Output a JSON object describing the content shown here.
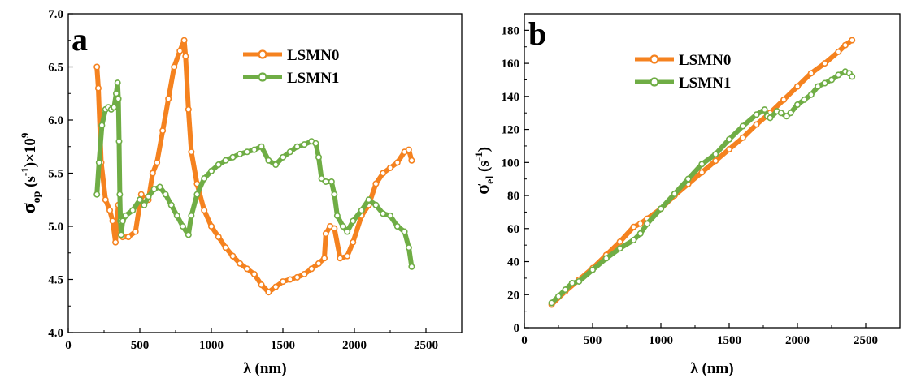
{
  "chart_data": [
    {
      "type": "line",
      "panel_label": "a",
      "ylabel_main": "σ",
      "ylabel_sub": "op",
      "ylabel_rest": " (s",
      "ylabel_exp": "-1",
      "ylabel_rest2": ")×10",
      "ylabel_exp2": "9",
      "xlabel": "λ (nm)",
      "xlim": [
        0,
        2750
      ],
      "ylim": [
        4.0,
        7.0
      ],
      "xticks": [
        0,
        500,
        1000,
        1500,
        2000,
        2500
      ],
      "yticks": [
        4.0,
        4.5,
        5.0,
        5.5,
        6.0,
        6.5,
        7.0
      ],
      "ytick_labels": [
        "4.0",
        "4.5",
        "5.0",
        "5.5",
        "6.0",
        "6.5",
        "7.0"
      ],
      "legend_position": "top-center",
      "series": [
        {
          "name": "LSMN0",
          "color": "#F5821F",
          "x": [
            200,
            210,
            230,
            260,
            290,
            310,
            330,
            350,
            365,
            380,
            420,
            470,
            510,
            540,
            560,
            590,
            620,
            660,
            700,
            740,
            780,
            810,
            820,
            840,
            860,
            900,
            950,
            1000,
            1050,
            1100,
            1150,
            1200,
            1250,
            1300,
            1350,
            1400,
            1450,
            1500,
            1550,
            1600,
            1650,
            1700,
            1750,
            1790,
            1800,
            1830,
            1860,
            1900,
            1950,
            1990,
            2050,
            2100,
            2150,
            2200,
            2250,
            2300,
            2350,
            2380,
            2400
          ],
          "y": [
            6.5,
            6.3,
            5.6,
            5.25,
            5.15,
            5.05,
            4.85,
            5.2,
            4.95,
            4.9,
            4.9,
            4.95,
            5.3,
            5.25,
            5.25,
            5.5,
            5.6,
            5.9,
            6.2,
            6.5,
            6.65,
            6.75,
            6.6,
            6.1,
            5.7,
            5.4,
            5.15,
            5.0,
            4.9,
            4.8,
            4.72,
            4.65,
            4.6,
            4.55,
            4.45,
            4.38,
            4.43,
            4.48,
            4.5,
            4.52,
            4.55,
            4.6,
            4.65,
            4.7,
            4.93,
            5.0,
            4.98,
            4.7,
            4.72,
            4.85,
            5.1,
            5.2,
            5.4,
            5.5,
            5.55,
            5.6,
            5.7,
            5.72,
            5.62
          ]
        },
        {
          "name": "LSMN1",
          "color": "#6FAD45",
          "x": [
            200,
            215,
            235,
            260,
            280,
            300,
            320,
            335,
            345,
            350,
            355,
            360,
            365,
            370,
            380,
            400,
            450,
            500,
            530,
            560,
            600,
            640,
            680,
            720,
            760,
            800,
            840,
            860,
            900,
            950,
            1000,
            1050,
            1100,
            1150,
            1200,
            1250,
            1300,
            1350,
            1400,
            1450,
            1500,
            1550,
            1600,
            1650,
            1700,
            1730,
            1750,
            1770,
            1800,
            1840,
            1860,
            1880,
            1920,
            1950,
            1990,
            2050,
            2100,
            2150,
            2200,
            2250,
            2300,
            2350,
            2380,
            2400
          ],
          "y": [
            5.3,
            5.6,
            5.95,
            6.1,
            6.12,
            6.1,
            6.12,
            6.25,
            6.35,
            6.2,
            5.8,
            5.3,
            5.05,
            4.92,
            5.05,
            5.1,
            5.15,
            5.25,
            5.2,
            5.28,
            5.35,
            5.37,
            5.3,
            5.2,
            5.1,
            5.0,
            4.92,
            5.1,
            5.3,
            5.45,
            5.52,
            5.58,
            5.62,
            5.65,
            5.68,
            5.7,
            5.72,
            5.75,
            5.62,
            5.58,
            5.65,
            5.7,
            5.75,
            5.77,
            5.8,
            5.78,
            5.65,
            5.45,
            5.42,
            5.42,
            5.3,
            5.1,
            5.0,
            4.95,
            5.05,
            5.15,
            5.25,
            5.2,
            5.12,
            5.1,
            5.0,
            4.95,
            4.8,
            4.62
          ]
        }
      ]
    },
    {
      "type": "line",
      "panel_label": "b",
      "ylabel_main": "σ",
      "ylabel_sub": "el",
      "ylabel_rest": " (s",
      "ylabel_exp": "-1",
      "ylabel_rest2": ")",
      "xlabel": "λ (nm)",
      "xlim": [
        0,
        2750
      ],
      "ylim": [
        0,
        190
      ],
      "xticks": [
        0,
        500,
        1000,
        1500,
        2000,
        2500
      ],
      "yticks": [
        0,
        20,
        40,
        60,
        80,
        100,
        120,
        140,
        160,
        180
      ],
      "ytick_labels": [
        "0",
        "20",
        "40",
        "60",
        "80",
        "100",
        "120",
        "140",
        "160",
        "180"
      ],
      "legend_position": "top-center",
      "series": [
        {
          "name": "LSMN0",
          "color": "#F5821F",
          "x": [
            200,
            300,
            400,
            500,
            600,
            700,
            800,
            850,
            900,
            1000,
            1100,
            1200,
            1300,
            1400,
            1500,
            1600,
            1700,
            1800,
            1900,
            2000,
            2100,
            2200,
            2300,
            2350,
            2400
          ],
          "y": [
            14,
            22,
            29,
            36,
            44,
            52,
            61,
            63,
            66,
            72,
            80,
            87,
            94,
            101,
            108,
            115,
            123,
            130,
            138,
            146,
            154,
            160,
            167,
            171,
            174
          ]
        },
        {
          "name": "LSMN1",
          "color": "#6FAD45",
          "x": [
            200,
            250,
            300,
            350,
            400,
            500,
            600,
            700,
            800,
            850,
            900,
            1000,
            1100,
            1200,
            1300,
            1400,
            1500,
            1600,
            1700,
            1760,
            1780,
            1800,
            1850,
            1880,
            1920,
            1950,
            2000,
            2050,
            2100,
            2150,
            2200,
            2250,
            2300,
            2350,
            2380,
            2400
          ],
          "y": [
            15,
            19,
            23,
            27,
            28,
            35,
            42,
            48,
            53,
            57,
            63,
            72,
            81,
            90,
            99,
            105,
            114,
            122,
            129,
            132,
            128,
            127,
            131,
            130,
            128,
            130,
            135,
            138,
            141,
            146,
            148,
            150,
            153,
            155,
            154,
            152
          ]
        }
      ]
    }
  ]
}
